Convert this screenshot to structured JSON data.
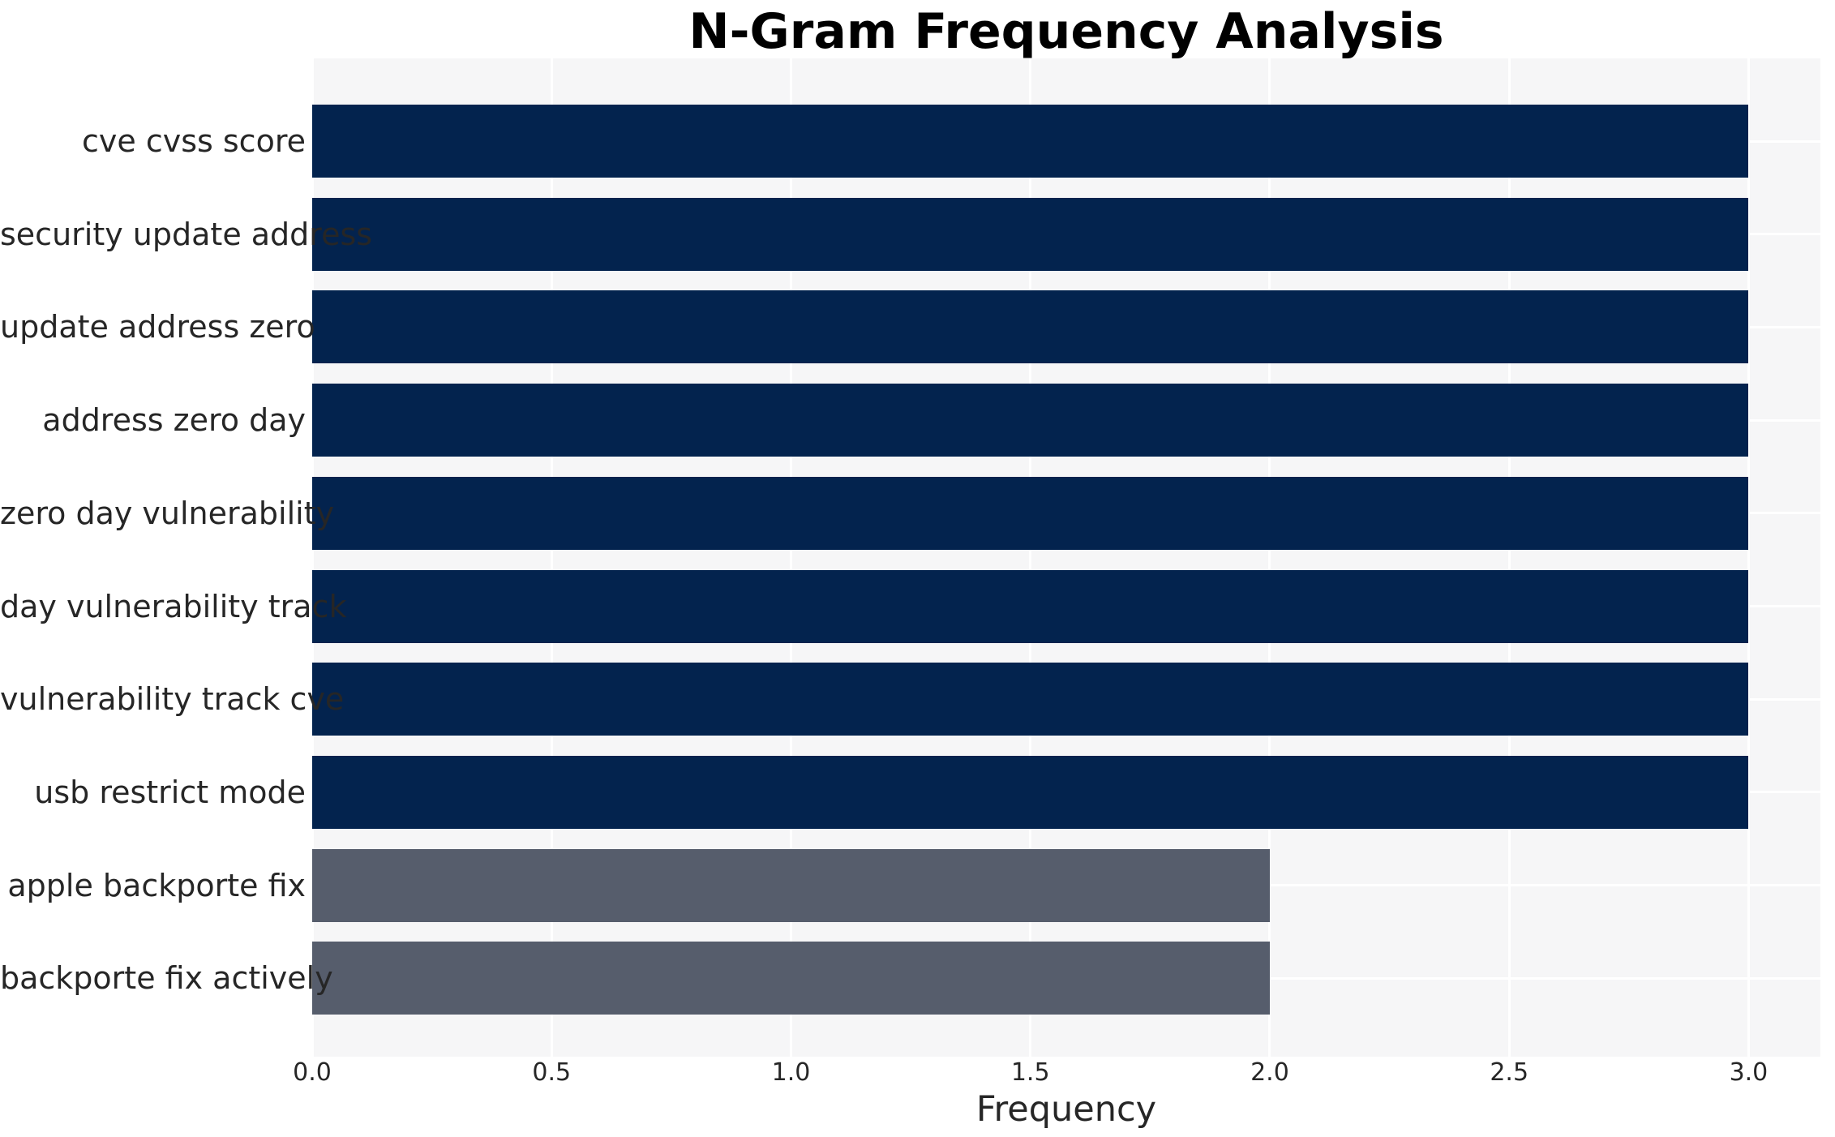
{
  "title": "N-Gram Frequency Analysis",
  "chart_data": {
    "type": "bar",
    "orientation": "horizontal",
    "title": "N-Gram Frequency Analysis",
    "xlabel": "Frequency",
    "ylabel": "",
    "categories": [
      "cve cvss score",
      "security update address",
      "update address zero",
      "address zero day",
      "zero day vulnerability",
      "day vulnerability track",
      "vulnerability track cve",
      "usb restrict mode",
      "apple backporte fix",
      "backporte fix actively"
    ],
    "values": [
      3,
      3,
      3,
      3,
      3,
      3,
      3,
      3,
      2,
      2
    ],
    "bar_colors": [
      "#03234e",
      "#03234e",
      "#03234e",
      "#03234e",
      "#03234e",
      "#03234e",
      "#03234e",
      "#03234e",
      "#565d6c",
      "#565d6c"
    ],
    "xlim": [
      0,
      3.15
    ],
    "xticks": [
      0.0,
      0.5,
      1.0,
      1.5,
      2.0,
      2.5,
      3.0
    ],
    "xtick_labels": [
      "0.0",
      "0.5",
      "1.0",
      "1.5",
      "2.0",
      "2.5",
      "3.0"
    ],
    "grid": true,
    "grid_color": "#ffffff",
    "plot_background": "#f6f6f7",
    "figure_background": "#ffffff",
    "legend": false,
    "colors": {
      "high_frequency": "#03234e",
      "low_frequency": "#565d6c"
    }
  }
}
